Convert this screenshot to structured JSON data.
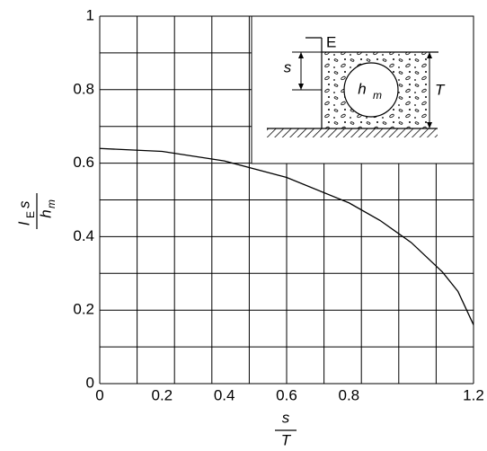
{
  "chart_data": {
    "type": "line",
    "xlabel": {
      "numerator": "s",
      "denominator": "T"
    },
    "ylabel": {
      "numerator": {
        "symbol": "l",
        "subscript": "E",
        "suffix": "s"
      },
      "denominator": {
        "symbol": "h",
        "subscript": "m"
      }
    },
    "x": [
      0,
      0.2,
      0.4,
      0.6,
      0.8,
      0.9,
      1.0,
      1.1,
      1.15,
      1.2
    ],
    "series": [
      {
        "name": "curve",
        "color": "#000000",
        "values": [
          0.64,
          0.632,
          0.606,
          0.561,
          0.492,
          0.444,
          0.384,
          0.304,
          0.251,
          0.16
        ]
      }
    ],
    "xlim": [
      0,
      1.2
    ],
    "ylim": [
      0,
      1.0
    ],
    "xticks": [
      0,
      0.2,
      0.4,
      0.6,
      0.8,
      1.2
    ],
    "yticks": [
      0,
      0.2,
      0.4,
      0.6,
      0.8,
      1.0
    ],
    "xgrid": [
      0,
      0.12,
      0.24,
      0.36,
      0.48,
      0.6,
      0.72,
      0.84,
      0.96,
      1.08,
      1.2
    ],
    "ygrid": [
      0,
      0.1,
      0.2,
      0.3,
      0.4,
      0.5,
      0.6,
      0.7,
      0.8,
      0.9,
      1.0
    ],
    "grid": true,
    "inset": {
      "surface_label": "E",
      "depth_label": "s",
      "thickness_label": "T",
      "material": {
        "symbol": "h",
        "subscript": "m"
      }
    }
  }
}
